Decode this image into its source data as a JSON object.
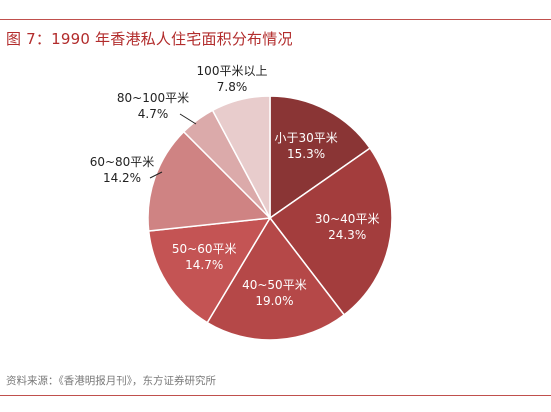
{
  "title": "图 7：1990 年香港私人住宅面积分布情况",
  "source": "资料来源：《香港明报月刊》，东方证券研究所",
  "colors": {
    "accent": "#b22c2c",
    "rule": "#c0504d"
  },
  "chart_data": {
    "type": "pie",
    "title": "图 7：1990 年香港私人住宅面积分布情况",
    "slices": [
      {
        "label": "小于30平米",
        "value": 15.3,
        "value_label": "15.3%",
        "color": "#8a3535",
        "label_pos": "inside",
        "text_color": "#ffffff"
      },
      {
        "label": "30~40平米",
        "value": 24.3,
        "value_label": "24.3%",
        "color": "#a33d3d",
        "label_pos": "inside",
        "text_color": "#ffffff"
      },
      {
        "label": "40~50平米",
        "value": 19.0,
        "value_label": "19.0%",
        "color": "#b54848",
        "label_pos": "inside",
        "text_color": "#ffffff"
      },
      {
        "label": "50~60平米",
        "value": 14.7,
        "value_label": "14.7%",
        "color": "#c45454",
        "label_pos": "inside",
        "text_color": "#ffffff"
      },
      {
        "label": "60~80平米",
        "value": 14.2,
        "value_label": "14.2%",
        "color": "#cf8383",
        "label_pos": "outside",
        "text_color": "#222222"
      },
      {
        "label": "80~100平米",
        "value": 4.7,
        "value_label": "4.7%",
        "color": "#dbaaaa",
        "label_pos": "outside",
        "text_color": "#222222"
      },
      {
        "label": "100平米以上",
        "value": 7.8,
        "value_label": "7.8%",
        "color": "#e8cccc",
        "label_pos": "outside",
        "text_color": "#222222"
      }
    ],
    "start": "12 o'clock",
    "direction": "clockwise",
    "legend": "none"
  }
}
